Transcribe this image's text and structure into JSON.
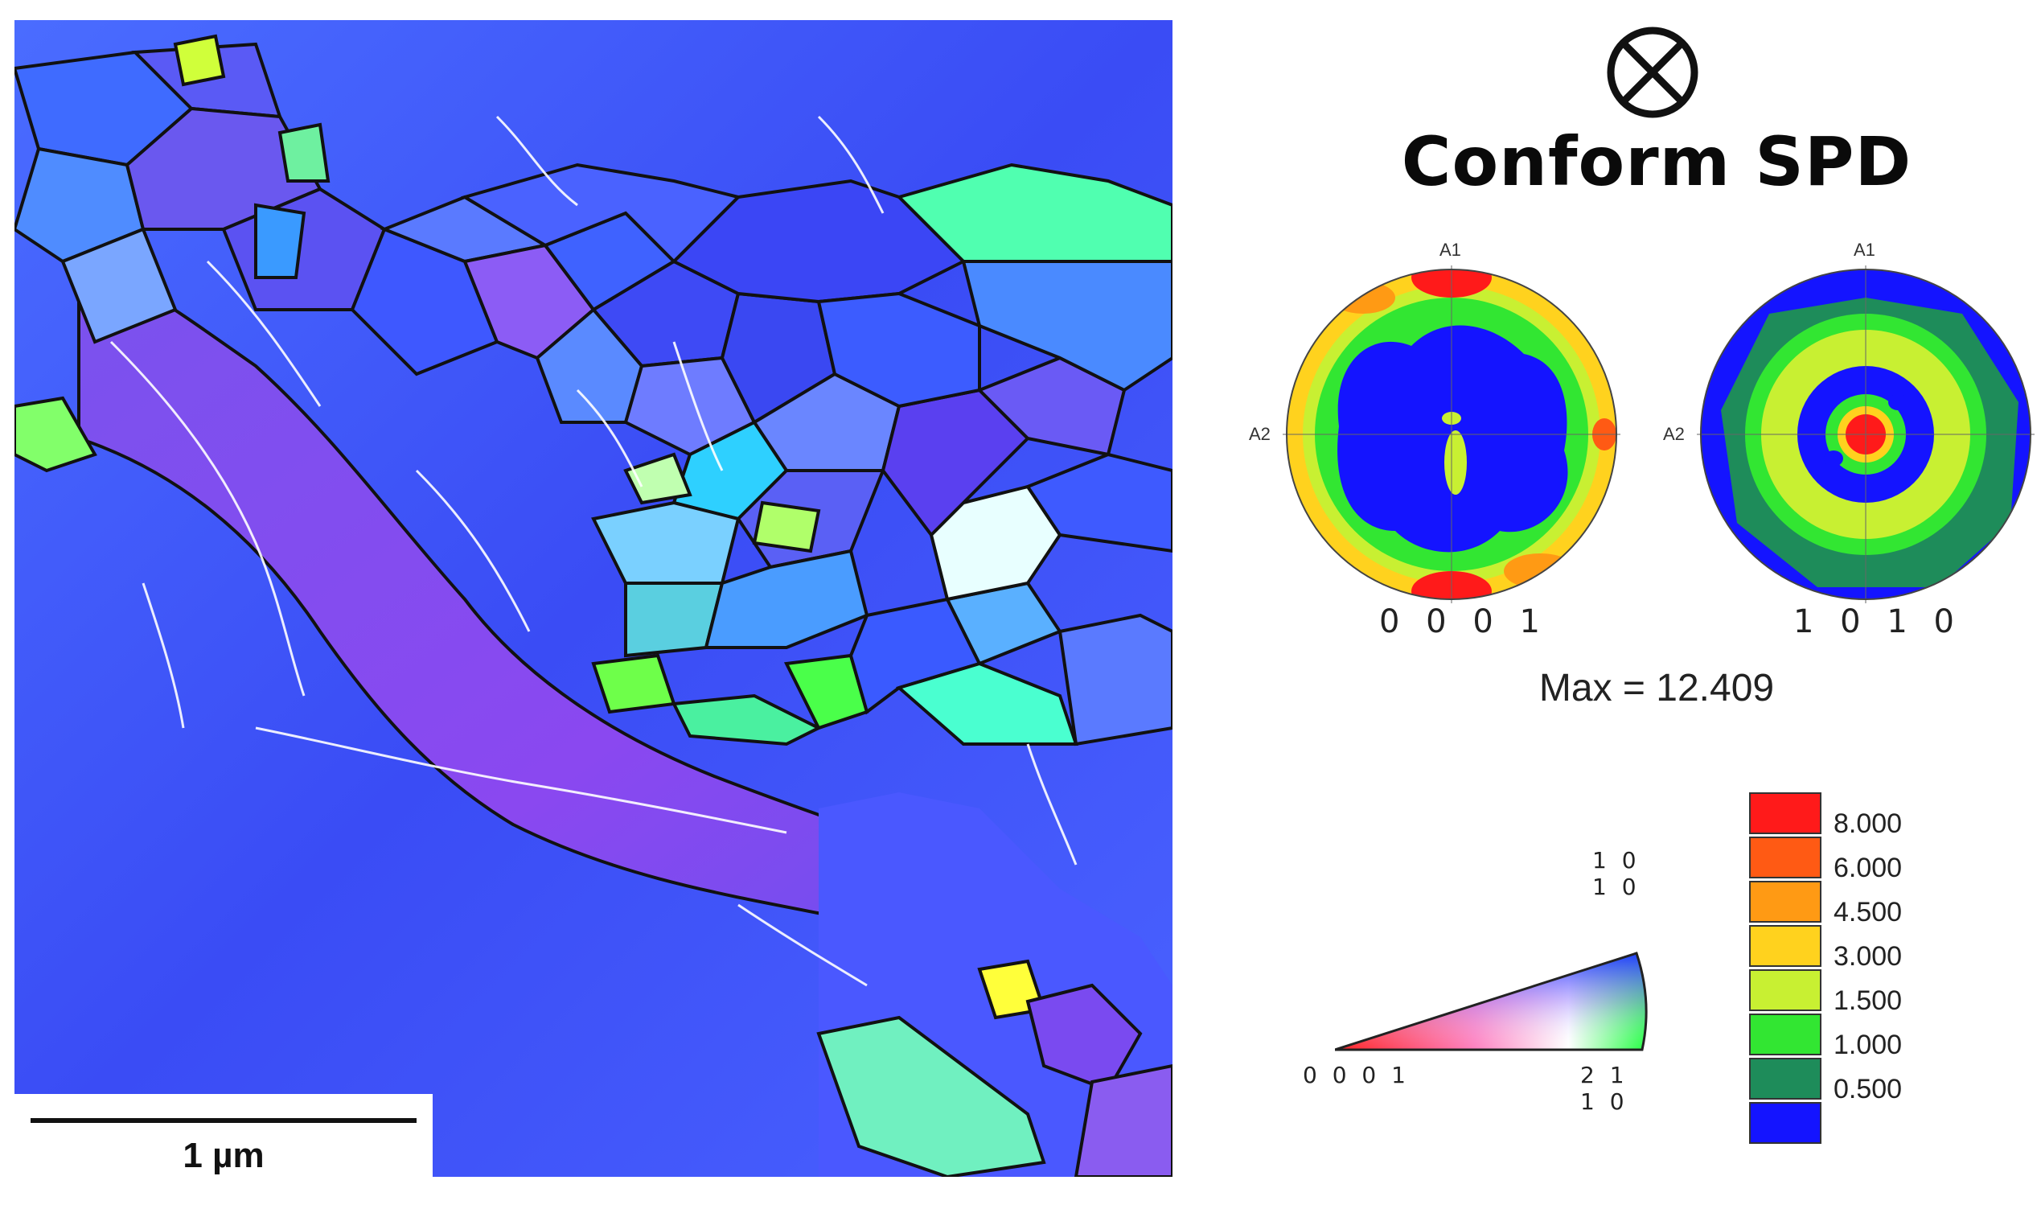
{
  "title": "Conform SPD",
  "direction_symbol": "circle-cross",
  "scale_bar": {
    "label": "1 µm"
  },
  "pole_figures": [
    {
      "caption": "0 0 0 1",
      "axis_top": "A1",
      "axis_left": "A2"
    },
    {
      "caption": "1 0 1 0",
      "axis_top": "A1",
      "axis_left": "A2"
    }
  ],
  "max_label": "Max = 12.409",
  "ipf_key": {
    "corners": [
      "0 0 0 1",
      "2 1 1 0",
      "1 0 1 0"
    ]
  },
  "legend": {
    "levels": [
      {
        "label": "8.000",
        "color": "#ff1a1a"
      },
      {
        "label": "6.000",
        "color": "#ff5a14"
      },
      {
        "label": "4.500",
        "color": "#ff9a14"
      },
      {
        "label": "3.000",
        "color": "#ffd21e"
      },
      {
        "label": "1.500",
        "color": "#c8f032"
      },
      {
        "label": "1.000",
        "color": "#32e632"
      },
      {
        "label": "0.500",
        "color": "#1e8c5a"
      },
      {
        "label": "",
        "color": "#1414ff"
      }
    ]
  }
}
